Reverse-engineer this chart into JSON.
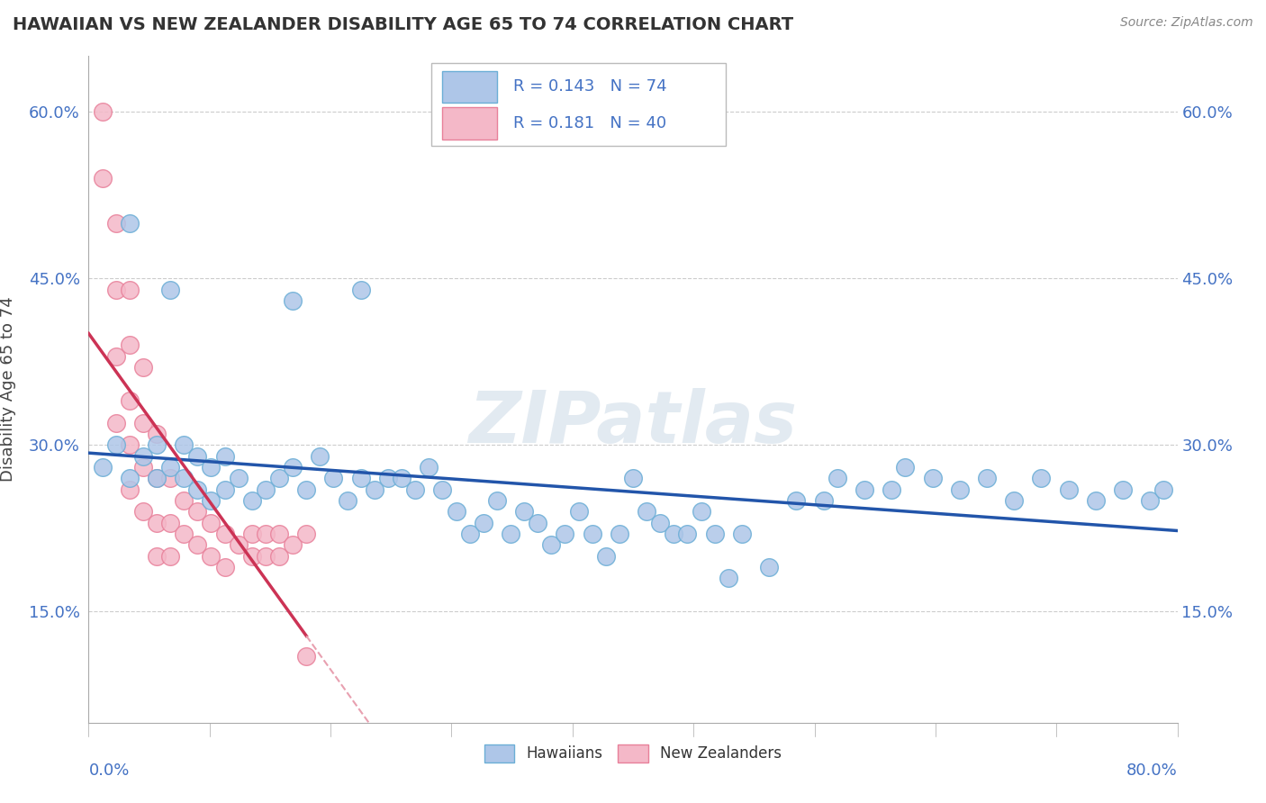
{
  "title": "HAWAIIAN VS NEW ZEALANDER DISABILITY AGE 65 TO 74 CORRELATION CHART",
  "source": "Source: ZipAtlas.com",
  "ylabel": "Disability Age 65 to 74",
  "xmin": 0.0,
  "xmax": 0.8,
  "ymin": 0.05,
  "ymax": 0.65,
  "yticks": [
    0.15,
    0.3,
    0.45,
    0.6
  ],
  "ytick_labels": [
    "15.0%",
    "30.0%",
    "45.0%",
    "60.0%"
  ],
  "hawaiian_color": "#aec6e8",
  "hawaiian_edge": "#6baed6",
  "nz_color": "#f4b8c8",
  "nz_edge": "#e8809a",
  "trend_hawaiian_color": "#2255aa",
  "trend_nz_color": "#cc3355",
  "trend_nz_dashed_color": "#e8a0b0",
  "R_hawaiian": 0.143,
  "N_hawaiian": 74,
  "R_nz": 0.181,
  "N_nz": 40,
  "hawaiian_x": [
    0.01,
    0.02,
    0.03,
    0.04,
    0.05,
    0.05,
    0.06,
    0.07,
    0.07,
    0.08,
    0.08,
    0.09,
    0.09,
    0.1,
    0.1,
    0.11,
    0.12,
    0.13,
    0.14,
    0.15,
    0.16,
    0.17,
    0.18,
    0.19,
    0.2,
    0.21,
    0.22,
    0.23,
    0.24,
    0.25,
    0.26,
    0.27,
    0.28,
    0.29,
    0.3,
    0.31,
    0.32,
    0.33,
    0.34,
    0.35,
    0.36,
    0.37,
    0.38,
    0.39,
    0.4,
    0.41,
    0.42,
    0.43,
    0.44,
    0.45,
    0.46,
    0.47,
    0.48,
    0.5,
    0.52,
    0.54,
    0.55,
    0.57,
    0.59,
    0.6,
    0.62,
    0.64,
    0.66,
    0.68,
    0.7,
    0.72,
    0.74,
    0.76,
    0.78,
    0.79,
    0.03,
    0.06,
    0.15,
    0.2
  ],
  "hawaiian_y": [
    0.28,
    0.3,
    0.27,
    0.29,
    0.27,
    0.3,
    0.28,
    0.27,
    0.3,
    0.26,
    0.29,
    0.25,
    0.28,
    0.26,
    0.29,
    0.27,
    0.25,
    0.26,
    0.27,
    0.28,
    0.26,
    0.29,
    0.27,
    0.25,
    0.27,
    0.26,
    0.27,
    0.27,
    0.26,
    0.28,
    0.26,
    0.24,
    0.22,
    0.23,
    0.25,
    0.22,
    0.24,
    0.23,
    0.21,
    0.22,
    0.24,
    0.22,
    0.2,
    0.22,
    0.27,
    0.24,
    0.23,
    0.22,
    0.22,
    0.24,
    0.22,
    0.18,
    0.22,
    0.19,
    0.25,
    0.25,
    0.27,
    0.26,
    0.26,
    0.28,
    0.27,
    0.26,
    0.27,
    0.25,
    0.27,
    0.26,
    0.25,
    0.26,
    0.25,
    0.26,
    0.5,
    0.44,
    0.43,
    0.44
  ],
  "nz_x": [
    0.01,
    0.01,
    0.02,
    0.02,
    0.02,
    0.02,
    0.03,
    0.03,
    0.03,
    0.03,
    0.03,
    0.04,
    0.04,
    0.04,
    0.04,
    0.05,
    0.05,
    0.05,
    0.05,
    0.06,
    0.06,
    0.06,
    0.07,
    0.07,
    0.08,
    0.08,
    0.09,
    0.09,
    0.1,
    0.1,
    0.11,
    0.12,
    0.12,
    0.13,
    0.13,
    0.14,
    0.14,
    0.15,
    0.16,
    0.16
  ],
  "nz_y": [
    0.6,
    0.54,
    0.5,
    0.44,
    0.38,
    0.32,
    0.44,
    0.39,
    0.34,
    0.3,
    0.26,
    0.37,
    0.32,
    0.28,
    0.24,
    0.31,
    0.27,
    0.23,
    0.2,
    0.27,
    0.23,
    0.2,
    0.25,
    0.22,
    0.24,
    0.21,
    0.23,
    0.2,
    0.22,
    0.19,
    0.21,
    0.22,
    0.2,
    0.22,
    0.2,
    0.22,
    0.2,
    0.21,
    0.22,
    0.11
  ],
  "watermark": "ZIPatlas",
  "background_color": "#ffffff",
  "grid_color": "#cccccc"
}
